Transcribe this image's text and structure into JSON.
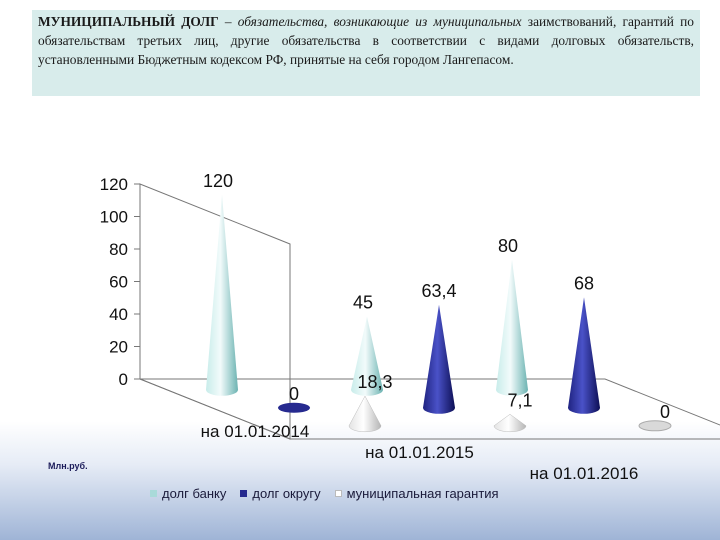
{
  "definition": {
    "term": "МУНИЦИПАЛЬНЫЙ ДОЛГ",
    "dash": "– обязательства, возникающие из муниципальных",
    "rest": "заимствований, гарантий по обязательствам третьих лиц, другие обязательства в соответствии с видами долговых обязательств, установленными Бюджетным кодексом РФ, принятые на себя городом Лангепасом."
  },
  "unit_label": "Млн.руб.",
  "colors": {
    "bank": "#a9dad9",
    "okrug": "#262a8f",
    "guarantee": "#ffffff"
  },
  "chart_data": {
    "type": "bar",
    "style": "3d-cone",
    "categories": [
      "на 01.01.2014",
      "на 01.01.2015",
      "на 01.01.2016"
    ],
    "series": [
      {
        "name": "долг банку",
        "values": [
          120,
          45,
          80
        ],
        "labels": [
          "120",
          "45",
          "80"
        ]
      },
      {
        "name": "долг округу",
        "values": [
          0,
          63.4,
          68
        ],
        "labels": [
          "0",
          "63,4",
          "68"
        ]
      },
      {
        "name": "муниципальная гарантия",
        "values": [
          18.3,
          7.1,
          0
        ],
        "labels": [
          "18,3",
          "7,1",
          "0"
        ]
      }
    ],
    "yticks": [
      "0",
      "20",
      "40",
      "60",
      "80",
      "100",
      "120"
    ],
    "ylim": [
      0,
      120
    ],
    "grid": false,
    "legend": "bottom"
  }
}
